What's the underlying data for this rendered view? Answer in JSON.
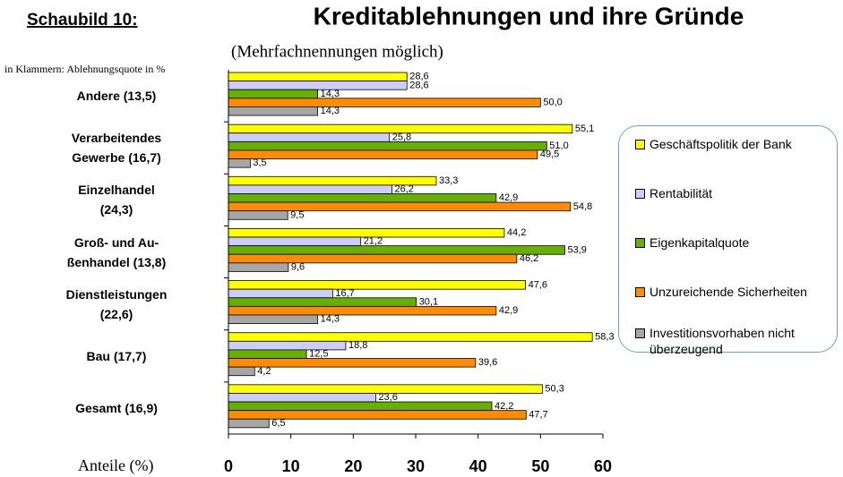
{
  "chart_data": {
    "type": "hbar",
    "label": "Schaubild 10:",
    "title": "Kreditablehnungen und ihre Gründe",
    "subtitle": "(Mehrfachnennungen möglich)",
    "note": "in Klammern: Ablehnungsquote in %",
    "xlabel": "Anteile (%)",
    "categories": [
      "Andere (13,5)",
      "Verarbeitendes\nGewerbe (16,7)",
      "Einzelhandel\n(24,3)",
      "Groß- und Au-\nßenhandel (13,8)",
      "Dienstleistungen\n(22,6)",
      "Bau (17,7)",
      "Gesamt (16,9)"
    ],
    "series": [
      {
        "name": "Geschäftspolitik der Bank",
        "color": "#ffff00",
        "values": [
          28.6,
          55.1,
          33.3,
          44.2,
          47.6,
          58.3,
          50.3
        ],
        "value_labels": [
          "28,6",
          "55,1",
          "33,3",
          "44,2",
          "47,6",
          "58,3",
          "50,3"
        ]
      },
      {
        "name": "Rentabilität",
        "color": "#ccccff",
        "values": [
          28.6,
          25.8,
          26.2,
          21.2,
          16.7,
          18.8,
          23.6
        ],
        "value_labels": [
          "28,6",
          "25,8",
          "26,2",
          "21,2",
          "16,7",
          "18,8",
          "23,6"
        ]
      },
      {
        "name": "Eigenkapitalquote",
        "color": "#66b000",
        "values": [
          14.3,
          51.0,
          42.9,
          53.9,
          30.1,
          12.5,
          42.2
        ],
        "value_labels": [
          "14,3",
          "51,0",
          "42,9",
          "53,9",
          "30,1",
          "12,5",
          "42,2"
        ]
      },
      {
        "name": "Unzureichende Sicherheiten",
        "color": "#ff8c00",
        "values": [
          50.0,
          49.5,
          54.8,
          46.2,
          42.9,
          39.6,
          47.7
        ],
        "value_labels": [
          "50,0",
          "49,5",
          "54,8",
          "46,2",
          "42,9",
          "39,6",
          "47,7"
        ]
      },
      {
        "name": "Investitionsvorhaben nicht überzeugend",
        "color": "#a6a6a6",
        "values": [
          14.3,
          3.5,
          9.5,
          9.6,
          14.3,
          4.2,
          6.5
        ],
        "value_labels": [
          "14,3",
          "3,5",
          "9,5",
          "9,6",
          "14,3",
          "4,2",
          "6,5"
        ]
      }
    ],
    "xlim": [
      0,
      60
    ],
    "xticks": [
      0,
      10,
      20,
      30,
      40,
      50,
      60
    ],
    "legend": "right"
  }
}
